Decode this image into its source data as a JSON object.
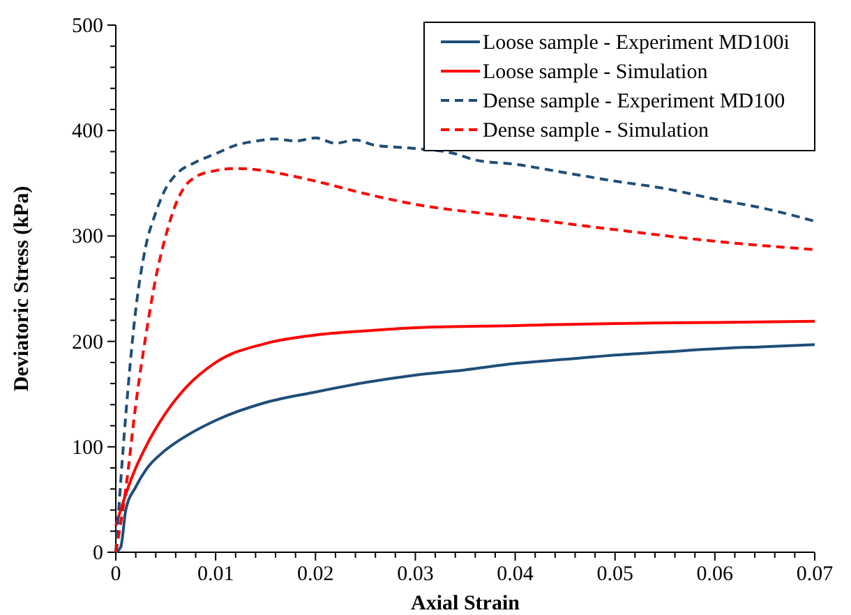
{
  "chart_data": {
    "type": "line",
    "xlabel": "Axial Strain",
    "ylabel": "Deviatoric Stress (kPa)",
    "xlim": [
      0,
      0.07
    ],
    "ylim": [
      0,
      500
    ],
    "xticks": [
      0,
      {
        "value": 0.002,
        "label": null
      },
      {
        "value": 0.004,
        "label": null
      },
      {
        "value": 0.006,
        "label": null
      },
      {
        "value": 0.008,
        "label": null
      },
      0.01,
      {
        "value": 0.012,
        "label": null
      },
      {
        "value": 0.014,
        "label": null
      },
      {
        "value": 0.016,
        "label": null
      },
      {
        "value": 0.018,
        "label": null
      },
      0.02,
      {
        "value": 0.022,
        "label": null
      },
      {
        "value": 0.024,
        "label": null
      },
      {
        "value": 0.026,
        "label": null
      },
      {
        "value": 0.028,
        "label": null
      },
      0.03,
      {
        "value": 0.032,
        "label": null
      },
      {
        "value": 0.034,
        "label": null
      },
      {
        "value": 0.036,
        "label": null
      },
      {
        "value": 0.038,
        "label": null
      },
      0.04,
      {
        "value": 0.042,
        "label": null
      },
      {
        "value": 0.044,
        "label": null
      },
      {
        "value": 0.046,
        "label": null
      },
      {
        "value": 0.048,
        "label": null
      },
      0.05,
      {
        "value": 0.052,
        "label": null
      },
      {
        "value": 0.054,
        "label": null
      },
      {
        "value": 0.056,
        "label": null
      },
      {
        "value": 0.058,
        "label": null
      },
      0.06,
      {
        "value": 0.062,
        "label": null
      },
      {
        "value": 0.064,
        "label": null
      },
      {
        "value": 0.066,
        "label": null
      },
      {
        "value": 0.068,
        "label": null
      },
      0.07
    ],
    "yticks": [
      0,
      {
        "value": 20,
        "label": null
      },
      {
        "value": 40,
        "label": null
      },
      {
        "value": 60,
        "label": null
      },
      {
        "value": 80,
        "label": null
      },
      100,
      {
        "value": 120,
        "label": null
      },
      {
        "value": 140,
        "label": null
      },
      {
        "value": 160,
        "label": null
      },
      {
        "value": 180,
        "label": null
      },
      200,
      {
        "value": 220,
        "label": null
      },
      {
        "value": 240,
        "label": null
      },
      {
        "value": 260,
        "label": null
      },
      {
        "value": 280,
        "label": null
      },
      300,
      {
        "value": 320,
        "label": null
      },
      {
        "value": 340,
        "label": null
      },
      {
        "value": 360,
        "label": null
      },
      {
        "value": 380,
        "label": null
      },
      400,
      {
        "value": 420,
        "label": null
      },
      {
        "value": 440,
        "label": null
      },
      {
        "value": 460,
        "label": null
      },
      {
        "value": 480,
        "label": null
      },
      500
    ],
    "grid": false,
    "legend": "top right",
    "series": [
      {
        "name": "Loose sample - Experiment MD100i",
        "color": "#1f4e79",
        "line_style": "solid",
        "x": [
          0,
          0.0005,
          0.001,
          0.002,
          0.003,
          0.005,
          0.007,
          0.01,
          0.015,
          0.02,
          0.025,
          0.03,
          0.035,
          0.04,
          0.045,
          0.05,
          0.055,
          0.06,
          0.065,
          0.07
        ],
        "values": [
          0,
          5,
          40,
          62,
          78,
          97,
          110,
          125,
          142,
          152,
          161,
          168,
          173,
          179,
          183,
          187,
          190,
          193,
          195,
          197
        ]
      },
      {
        "name": "Loose sample - Simulation",
        "color": "#ff0000",
        "line_style": "solid",
        "x": [
          0,
          0.001,
          0.002,
          0.003,
          0.005,
          0.007,
          0.01,
          0.015,
          0.02,
          0.025,
          0.03,
          0.04,
          0.05,
          0.06,
          0.07
        ],
        "values": [
          25,
          55,
          80,
          100,
          132,
          156,
          180,
          198,
          206,
          210,
          213,
          215,
          217,
          218,
          219
        ]
      },
      {
        "name": "Dense sample - Experiment MD100",
        "color": "#1f4e79",
        "line_style": "dashed",
        "x": [
          0,
          0.001,
          0.002,
          0.003,
          0.004,
          0.005,
          0.006,
          0.008,
          0.01,
          0.012,
          0.014,
          0.016,
          0.018,
          0.02,
          0.022,
          0.024,
          0.026,
          0.03,
          0.034,
          0.036,
          0.04,
          0.045,
          0.05,
          0.055,
          0.06,
          0.065,
          0.07
        ],
        "values": [
          0,
          130,
          230,
          290,
          322,
          345,
          358,
          370,
          378,
          386,
          390,
          392,
          390,
          393,
          388,
          391,
          386,
          383,
          378,
          372,
          368,
          360,
          352,
          345,
          335,
          326,
          314
        ]
      },
      {
        "name": "Dense sample - Simulation",
        "color": "#ff0000",
        "line_style": "dashed",
        "x": [
          0,
          0.001,
          0.002,
          0.003,
          0.004,
          0.005,
          0.006,
          0.007,
          0.008,
          0.01,
          0.012,
          0.014,
          0.016,
          0.02,
          0.025,
          0.03,
          0.04,
          0.05,
          0.06,
          0.07
        ],
        "values": [
          0,
          60,
          140,
          205,
          260,
          300,
          330,
          348,
          356,
          362,
          364,
          363,
          360,
          352,
          340,
          330,
          318,
          306,
          295,
          287
        ]
      }
    ]
  }
}
